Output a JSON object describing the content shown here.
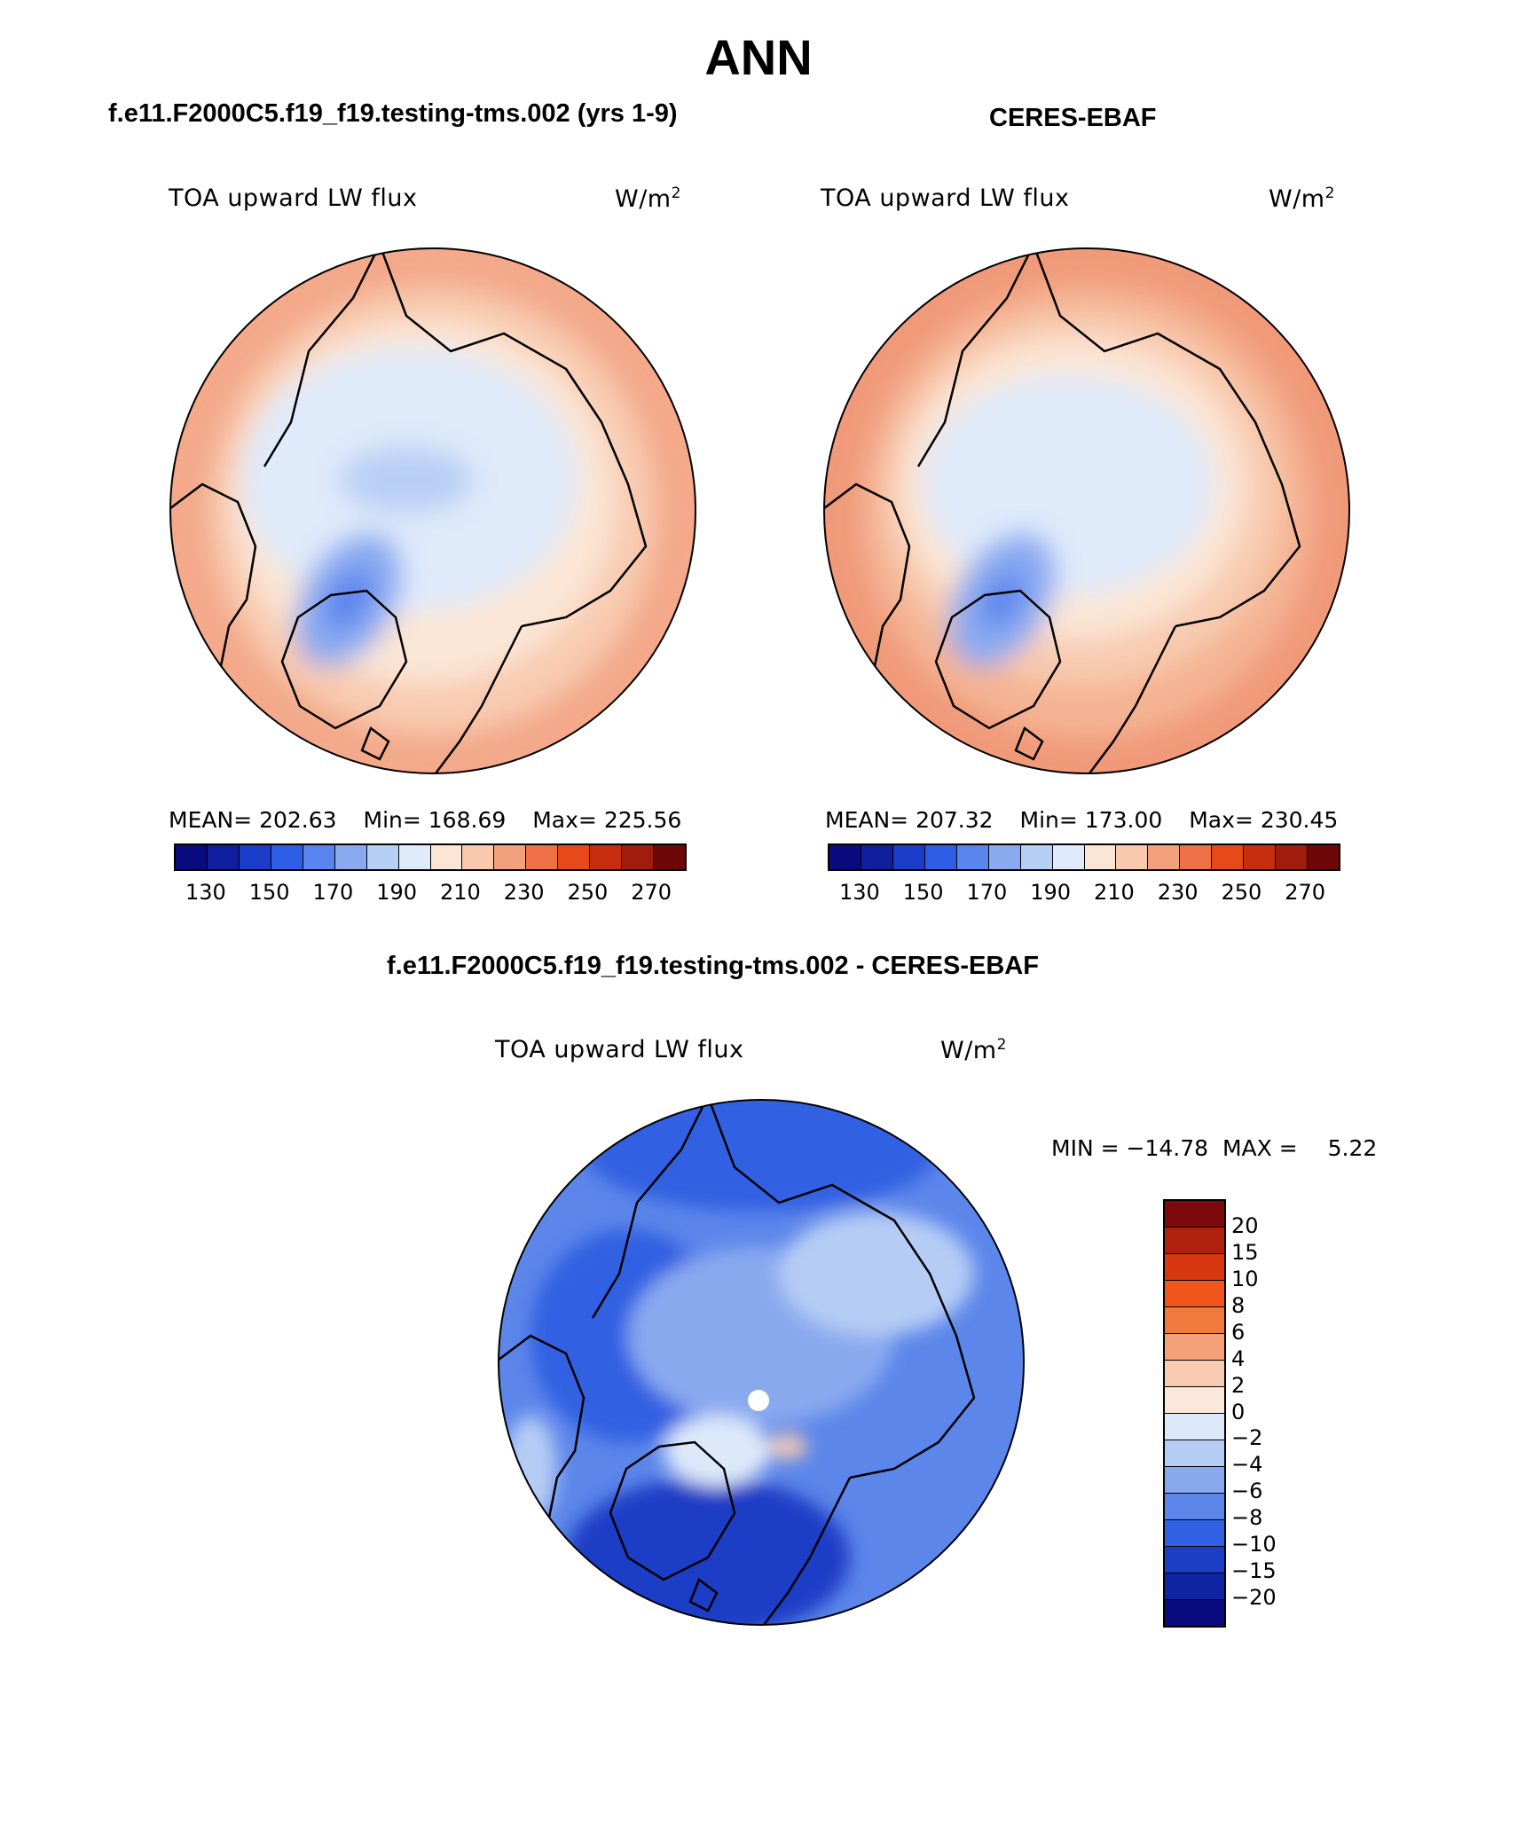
{
  "figure": {
    "season_title": "ANN",
    "diff_title": "f.e11.F2000C5.f19_f19.testing-tms.002 - CERES-EBAF"
  },
  "panels": {
    "model": {
      "case_title": "f.e11.F2000C5.f19_f19.testing-tms.002 (yrs 1-9)",
      "var_title": "TOA upward LW flux",
      "units_base": "W/m",
      "units_exp": "2",
      "mean_label": "MEAN=",
      "mean_value": "202.63",
      "min_label": "Min=",
      "min_value": "168.69",
      "max_label": "Max=",
      "max_value": "225.56"
    },
    "obs": {
      "case_title": "CERES-EBAF",
      "var_title": "TOA upward LW flux",
      "units_base": "W/m",
      "units_exp": "2",
      "mean_label": "MEAN=",
      "mean_value": "207.32",
      "min_label": "Min=",
      "min_value": "173.00",
      "max_label": "Max=",
      "max_value": "230.45"
    },
    "diff": {
      "var_title": "TOA upward LW flux",
      "units_base": "W/m",
      "units_exp": "2",
      "min_label": "MIN =",
      "min_value": "−14.78",
      "max_label": "MAX =",
      "max_value": "5.22"
    }
  },
  "abs_colorbar": {
    "ticks": [
      "130",
      "150",
      "170",
      "190",
      "210",
      "230",
      "250",
      "270"
    ],
    "colors": [
      "#080a7e",
      "#0f1e9c",
      "#1b3cc8",
      "#2f5ee6",
      "#5a84ee",
      "#8aaaf0",
      "#b8cff5",
      "#dfeafa",
      "#fbe5d4",
      "#f8c9ad",
      "#f3a07c",
      "#ee7046",
      "#e64a1a",
      "#c72e10",
      "#a01c0c",
      "#6e0808"
    ]
  },
  "diff_colorbar": {
    "ticks": [
      "20",
      "15",
      "10",
      "8",
      "6",
      "4",
      "2",
      "0",
      "−2",
      "−4",
      "−6",
      "−8",
      "−10",
      "−15",
      "−20"
    ],
    "colors": [
      "#7d0a0a",
      "#b0220e",
      "#d8380f",
      "#f0561c",
      "#f07a3e",
      "#f4a17a",
      "#f8cbb1",
      "#fbe8da",
      "#dde9fa",
      "#b5ccf4",
      "#89a9ef",
      "#5c86ea",
      "#3160e2",
      "#1b3ec6",
      "#0f24a0",
      "#070b7e"
    ]
  },
  "chart_data": {
    "type": "heatmap",
    "title": "ANN",
    "projection": "north polar stereographic",
    "variable": "TOA upward LW flux",
    "units": "W/m2",
    "panels": [
      {
        "name": "f.e11.F2000C5.f19_f19.testing-tms.002 (yrs 1-9)",
        "mean": 202.63,
        "min": 168.69,
        "max": 225.56,
        "levels": [
          130,
          140,
          150,
          160,
          170,
          180,
          190,
          200,
          210,
          220,
          230,
          240,
          250,
          260,
          270
        ]
      },
      {
        "name": "CERES-EBAF",
        "mean": 207.32,
        "min": 173.0,
        "max": 230.45,
        "levels": [
          130,
          140,
          150,
          160,
          170,
          180,
          190,
          200,
          210,
          220,
          230,
          240,
          250,
          260,
          270
        ]
      },
      {
        "name": "f.e11.F2000C5.f19_f19.testing-tms.002 - CERES-EBAF",
        "min": -14.78,
        "max": 5.22,
        "levels": [
          -20,
          -15,
          -10,
          -8,
          -6,
          -4,
          -2,
          0,
          2,
          4,
          6,
          8,
          10,
          15,
          20
        ]
      }
    ]
  }
}
